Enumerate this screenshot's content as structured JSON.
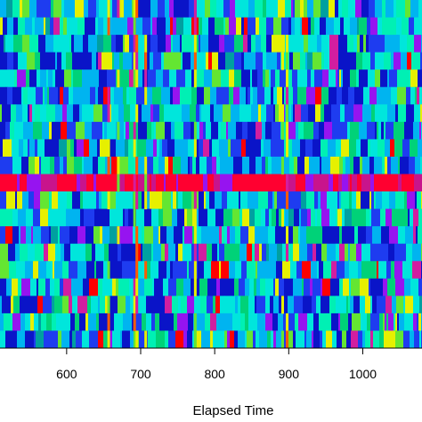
{
  "chart_data": {
    "type": "heatmap",
    "title": "",
    "xlabel": "Elapsed Time",
    "ylabel": "",
    "x_ticks": [
      600,
      700,
      800,
      900,
      1000
    ],
    "x_tick_labels": [
      "600",
      "700",
      "800",
      "900",
      "1000"
    ],
    "xlim": [
      510,
      1080
    ],
    "rows": 20,
    "colormap": [
      "#0a14c8",
      "#1e3cf0",
      "#00b4f0",
      "#00e6dc",
      "#00f0b4",
      "#00d278",
      "#64e632",
      "#e6f000",
      "#ff0000",
      "#9614f0",
      "#d21ea0",
      "#00a0a0"
    ],
    "highlight_row": 10,
    "highlight_color": "#ff0030",
    "vertical_streaks_x": [
      655,
      668,
      690,
      693,
      705,
      772,
      890,
      896
    ],
    "grid": false,
    "legend": "none"
  }
}
